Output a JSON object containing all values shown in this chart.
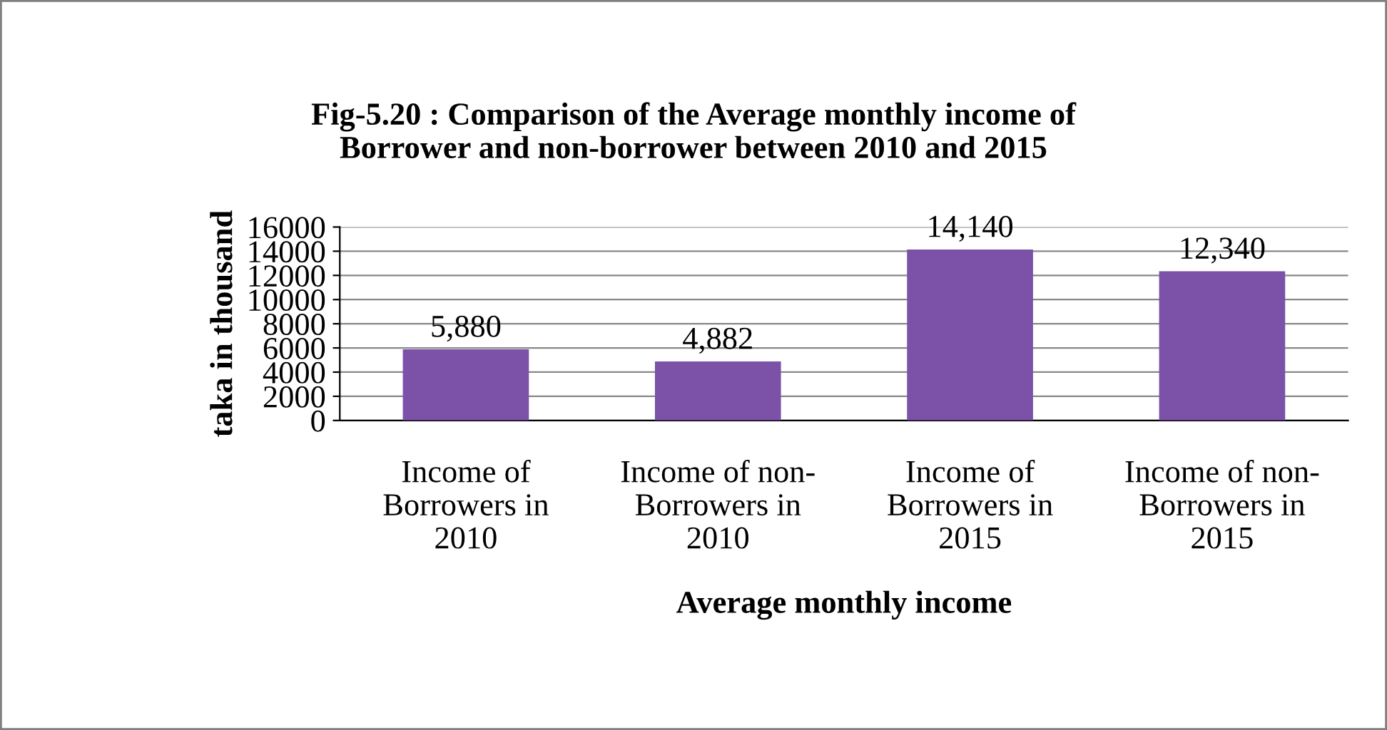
{
  "chart_data": {
    "type": "bar",
    "title": "Fig-5.20 : Comparison of the Average monthly income of\nBorrower and non-borrower between 2010 and 2015",
    "categories": [
      "Income of\nBorrowers in\n2010",
      "Income of non-\nBorrowers in\n2010",
      "Income of\nBorrowers in\n2015",
      "Income of non-\nBorrowers in\n2015"
    ],
    "values": [
      5880,
      4882,
      14140,
      12340
    ],
    "value_labels": [
      "5,880",
      "4,882",
      "14,140",
      "12,340"
    ],
    "color": "#7b52a8",
    "xlabel": "Average monthly income",
    "ylabel": "taka in thousand",
    "ylim": [
      0,
      16000
    ],
    "yticks": [
      0,
      2000,
      4000,
      6000,
      8000,
      10000,
      12000,
      14000,
      16000
    ],
    "grid": "y"
  }
}
